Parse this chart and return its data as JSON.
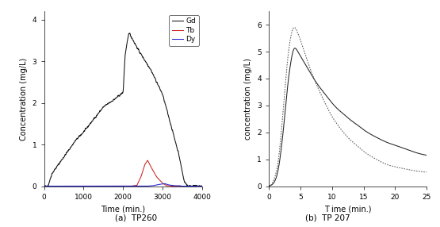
{
  "left": {
    "title": "(a)  TP260",
    "xlabel": "Time (min.)",
    "ylabel": "Concentration (mg/L)",
    "xlim": [
      0,
      4000
    ],
    "ylim": [
      0,
      4.2
    ],
    "yticks": [
      0,
      1,
      2,
      3,
      4
    ],
    "xticks": [
      0,
      1000,
      2000,
      3000,
      4000
    ],
    "legend": [
      "Gd",
      "Tb",
      "Dy"
    ],
    "colors": [
      "#111111",
      "#cc2222",
      "#2222cc"
    ]
  },
  "right": {
    "title": "(b)  TP 207",
    "xlabel": "T ime (min.)",
    "ylabel": "concentration (mg/L)",
    "xlim": [
      0,
      25
    ],
    "ylim": [
      0,
      6.5
    ],
    "yticks": [
      0,
      1,
      2,
      3,
      4,
      5,
      6
    ],
    "xticks": [
      0,
      5,
      10,
      15,
      20,
      25
    ]
  }
}
